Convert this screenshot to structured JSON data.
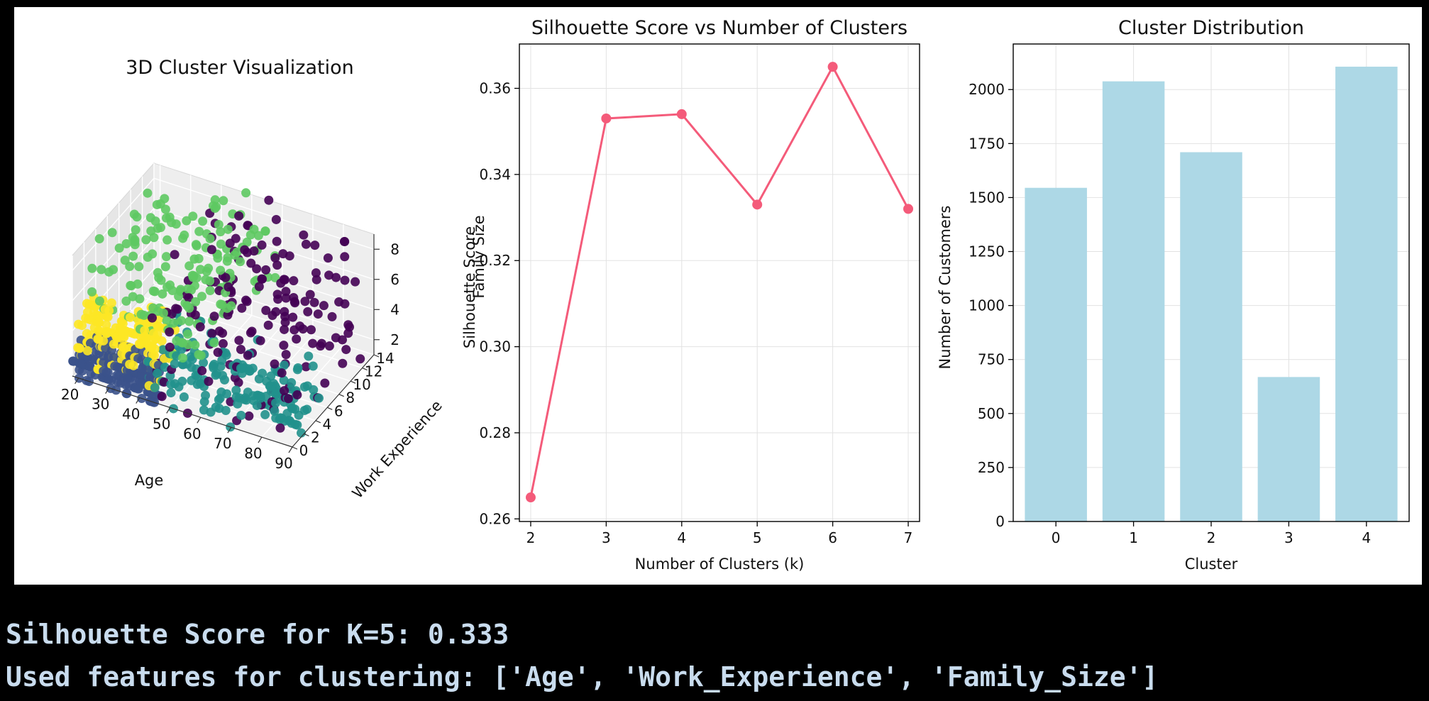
{
  "chart_data": [
    {
      "type": "scatter",
      "title": "3D Cluster Visualization",
      "xlabel": "Age",
      "ylabel": "Work Experience",
      "zlabel": "Family Size",
      "xticks": [
        "20",
        "30",
        "40",
        "50",
        "60",
        "70",
        "80",
        "90"
      ],
      "yticks": [
        "0",
        "2",
        "4",
        "6",
        "8",
        "10",
        "12",
        "14"
      ],
      "zticks": [
        "2",
        "4",
        "6",
        "8"
      ],
      "xlim": [
        18,
        90
      ],
      "ylim": [
        0,
        14
      ],
      "zlim": [
        1,
        9
      ],
      "cluster_colors": [
        "#440154",
        "#3b528b",
        "#21918c",
        "#5ec962",
        "#fde725"
      ],
      "clusters": [
        {
          "age": [
            40,
            90
          ],
          "work": [
            0,
            14
          ],
          "family": [
            1,
            9
          ]
        },
        {
          "age": [
            18,
            45
          ],
          "work": [
            0,
            2
          ],
          "family": [
            1,
            3
          ]
        },
        {
          "age": [
            40,
            90
          ],
          "work": [
            0,
            6
          ],
          "family": [
            1,
            4
          ]
        },
        {
          "age": [
            18,
            60
          ],
          "work": [
            0,
            14
          ],
          "family": [
            4,
            9
          ]
        },
        {
          "age": [
            18,
            45
          ],
          "work": [
            0,
            4
          ],
          "family": [
            2,
            5
          ]
        }
      ]
    },
    {
      "type": "line",
      "title": "Silhouette Score vs Number of Clusters",
      "xlabel": "Number of Clusters (k)",
      "ylabel": "Silhouette Score",
      "x": [
        2,
        3,
        4,
        5,
        6,
        7
      ],
      "y": [
        0.265,
        0.353,
        0.354,
        0.333,
        0.365,
        0.332
      ],
      "xlim": [
        1.85,
        7.15
      ],
      "ylim": [
        0.2594,
        0.3703
      ],
      "yticks": [
        "0.26",
        "0.28",
        "0.30",
        "0.32",
        "0.34",
        "0.36"
      ],
      "xticks": [
        "2",
        "3",
        "4",
        "5",
        "6",
        "7"
      ],
      "color": "#f45b7a",
      "grid": true
    },
    {
      "type": "bar",
      "title": "Cluster Distribution",
      "xlabel": "Cluster",
      "ylabel": "Number of Customers",
      "categories": [
        "0",
        "1",
        "2",
        "3",
        "4"
      ],
      "values": [
        1545,
        2038,
        1710,
        669,
        2106
      ],
      "ylim": [
        0,
        2211
      ],
      "yticks": [
        "0",
        "250",
        "500",
        "750",
        "1000",
        "1250",
        "1500",
        "1750",
        "2000"
      ],
      "color": "#add8e6",
      "grid": true
    }
  ],
  "console": {
    "line1": "Silhouette Score for K=5: 0.333",
    "line2": "Used features for clustering: ['Age', 'Work_Experience', 'Family_Size']"
  }
}
